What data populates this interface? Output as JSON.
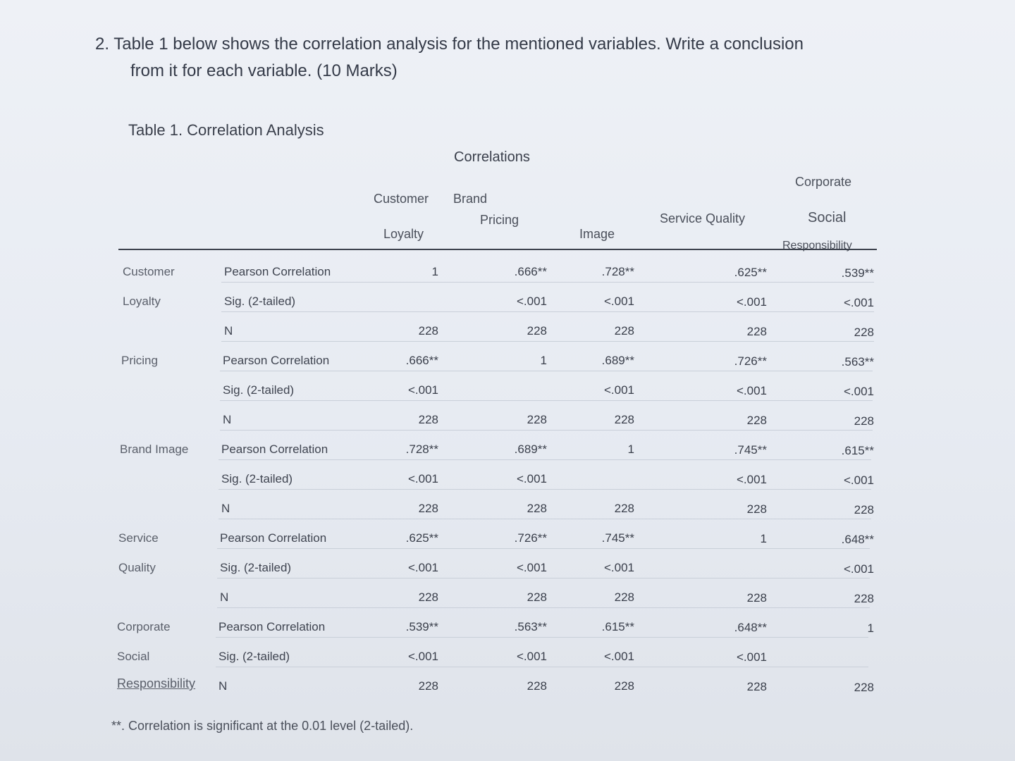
{
  "question": {
    "line1": "2. Table 1 below shows the correlation analysis for the mentioned variables. Write a conclusion",
    "line2": "from it for each variable. (10 Marks)"
  },
  "table_title": "Table 1. Correlation Analysis",
  "correlations_title": "Correlations",
  "columns": {
    "customer_loyalty": [
      "Customer",
      "Loyalty"
    ],
    "pricing": "Pricing",
    "brand_image": [
      "Brand",
      "Image"
    ],
    "service_quality": "Service Quality",
    "csr": [
      "Corporate",
      "Social",
      "Responsibility"
    ]
  },
  "stat_labels": {
    "pearson": "Pearson Correlation",
    "sig": "Sig. (2-tailed)",
    "n": "N"
  },
  "rows": [
    {
      "label": [
        "Customer",
        "Loyalty"
      ],
      "pearson": [
        "1",
        ".666**",
        ".728**",
        ".625**",
        ".539**"
      ],
      "sig": [
        "",
        "<.001",
        "<.001",
        "<.001",
        "<.001"
      ],
      "n": [
        "228",
        "228",
        "228",
        "228",
        "228"
      ]
    },
    {
      "label": [
        "Pricing"
      ],
      "pearson": [
        ".666**",
        "1",
        ".689**",
        ".726**",
        ".563**"
      ],
      "sig": [
        "<.001",
        "",
        "<.001",
        "<.001",
        "<.001"
      ],
      "n": [
        "228",
        "228",
        "228",
        "228",
        "228"
      ]
    },
    {
      "label": [
        "Brand Image"
      ],
      "pearson": [
        ".728**",
        ".689**",
        "1",
        ".745**",
        ".615**"
      ],
      "sig": [
        "<.001",
        "<.001",
        "",
        "<.001",
        "<.001"
      ],
      "n": [
        "228",
        "228",
        "228",
        "228",
        "228"
      ]
    },
    {
      "label": [
        "Service",
        "Quality"
      ],
      "pearson": [
        ".625**",
        ".726**",
        ".745**",
        "1",
        ".648**"
      ],
      "sig": [
        "<.001",
        "<.001",
        "<.001",
        "",
        "<.001"
      ],
      "n": [
        "228",
        "228",
        "228",
        "228",
        "228"
      ]
    },
    {
      "label": [
        "Corporate",
        "Social",
        "Responsibility"
      ],
      "pearson": [
        ".539**",
        ".563**",
        ".615**",
        ".648**",
        "1"
      ],
      "sig": [
        "<.001",
        "<.001",
        "<.001",
        "<.001",
        ""
      ],
      "n": [
        "228",
        "228",
        "228",
        "228",
        "228"
      ]
    }
  ],
  "footnote": "**. Correlation is significant at the 0.01 level (2-tailed)."
}
